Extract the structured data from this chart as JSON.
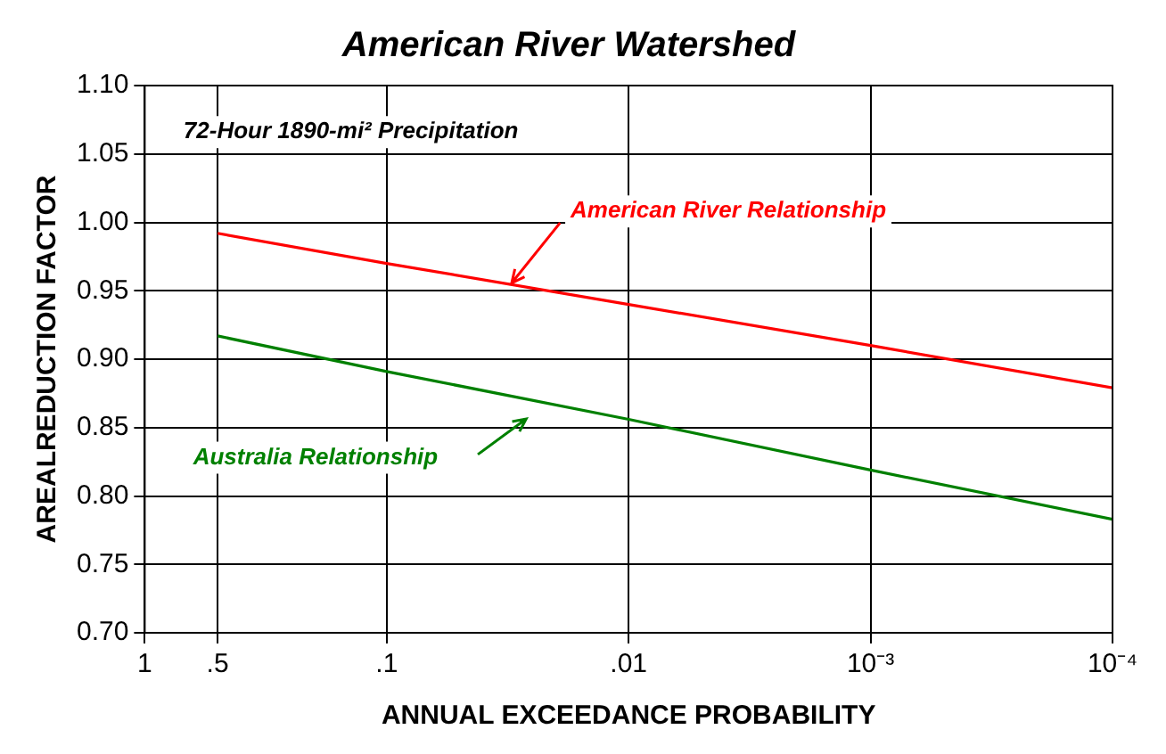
{
  "chart_data": {
    "type": "line",
    "title": "American River Watershed",
    "xlabel": "ANNUAL EXCEEDANCE PROBABILITY",
    "ylabel": "AREALREDUCTION FACTOR",
    "annotations": [
      "72-Hour 1890-mi² Precipitation"
    ],
    "x": [
      0.5,
      0.1,
      0.01,
      0.001,
      0.0001
    ],
    "series": [
      {
        "name": "American River Relationship",
        "color": "#ff0000",
        "values": [
          0.992,
          0.97,
          0.94,
          0.91,
          0.879
        ]
      },
      {
        "name": "Australia Relationship",
        "color": "#008000",
        "values": [
          0.917,
          0.891,
          0.856,
          0.819,
          0.783
        ]
      }
    ],
    "log": "x",
    "xlim": [
      1,
      0.0001
    ],
    "xticks": [
      1,
      {
        "value": 0.5,
        "label": ".5"
      },
      {
        "value": 0.1,
        "label": ".1"
      },
      {
        "value": 0.01,
        "label": ".01"
      },
      {
        "value": 0.001,
        "label": "10⁻³"
      },
      {
        "value": 0.0001,
        "label": "10⁻⁴"
      }
    ],
    "ylim": [
      0.7,
      1.1
    ],
    "yticks": [
      {
        "value": 0.7,
        "label": "0.70"
      },
      {
        "value": 0.75,
        "label": "0.75"
      },
      {
        "value": 0.8,
        "label": "0.80"
      },
      {
        "value": 0.85,
        "label": "0.85"
      },
      {
        "value": 0.9,
        "label": "0.90"
      },
      {
        "value": 0.95,
        "label": "0.95"
      },
      {
        "value": 1.0,
        "label": "1.00"
      },
      {
        "value": 1.05,
        "label": "1.05"
      },
      {
        "value": 1.1,
        "label": "1.10"
      }
    ],
    "grid": true,
    "legend": false,
    "marker": "none",
    "line_style": "solid"
  }
}
